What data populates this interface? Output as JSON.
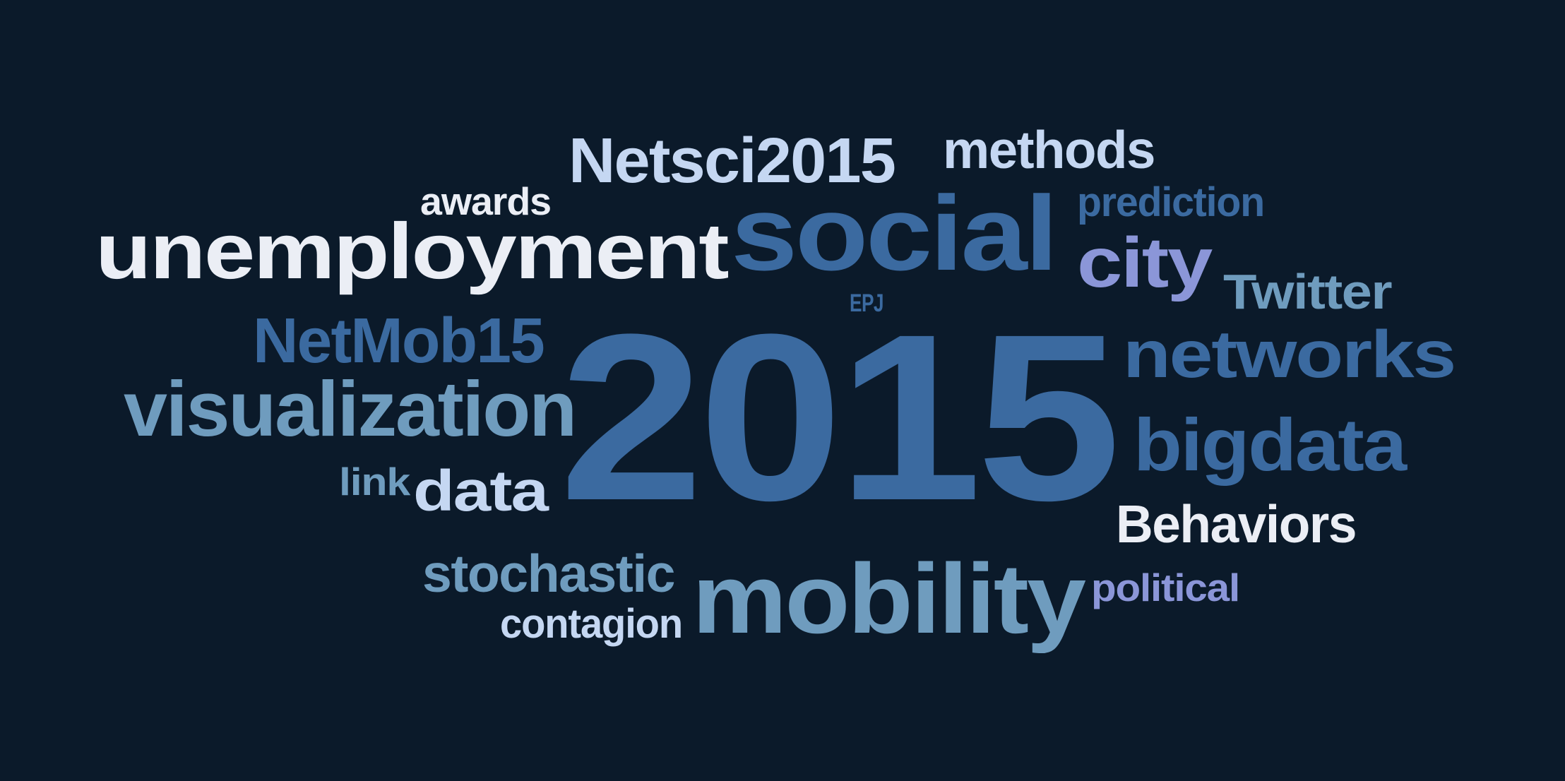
{
  "word_cloud": {
    "background": "#0b1a2a",
    "palette": {
      "light": "#ebeef5",
      "pale_blue": "#c5d7f2",
      "steel_blue": "#3b6aa0",
      "slate_blue": "#6f9cbe",
      "periwinkle": "#8b96d8"
    },
    "words": [
      {
        "id": "w2015",
        "text": "2015",
        "color": "#3b6aa0"
      },
      {
        "id": "unemployment",
        "text": "unemployment",
        "color": "#ebeef5"
      },
      {
        "id": "social",
        "text": "social",
        "color": "#3b6aa0"
      },
      {
        "id": "mobility",
        "text": "mobility",
        "color": "#6f9cbe"
      },
      {
        "id": "visualization",
        "text": "visualization",
        "color": "#6f9cbe"
      },
      {
        "id": "networks",
        "text": "networks",
        "color": "#3b6aa0"
      },
      {
        "id": "bigdata",
        "text": "bigdata",
        "color": "#3b6aa0"
      },
      {
        "id": "netsci2015",
        "text": "Netsci2015",
        "color": "#c5d7f2"
      },
      {
        "id": "city",
        "text": "city",
        "color": "#8b96d8"
      },
      {
        "id": "netmob15",
        "text": "NetMob15",
        "color": "#3b6aa0"
      },
      {
        "id": "methods",
        "text": "methods",
        "color": "#c5d7f2"
      },
      {
        "id": "data",
        "text": "data",
        "color": "#c5d7f2"
      },
      {
        "id": "behaviors",
        "text": "Behaviors",
        "color": "#ebeef5"
      },
      {
        "id": "stochastic",
        "text": "stochastic",
        "color": "#6f9cbe"
      },
      {
        "id": "twitter",
        "text": "Twitter",
        "color": "#6f9cbe"
      },
      {
        "id": "prediction",
        "text": "prediction",
        "color": "#3b6aa0"
      },
      {
        "id": "contagion",
        "text": "contagion",
        "color": "#c5d7f2"
      },
      {
        "id": "political",
        "text": "political",
        "color": "#8b96d8"
      },
      {
        "id": "awards",
        "text": "awards",
        "color": "#ebeef5"
      },
      {
        "id": "link",
        "text": "link",
        "color": "#6f9cbe"
      },
      {
        "id": "epj",
        "text": "EPJ",
        "color": "#3b6aa0"
      }
    ]
  }
}
